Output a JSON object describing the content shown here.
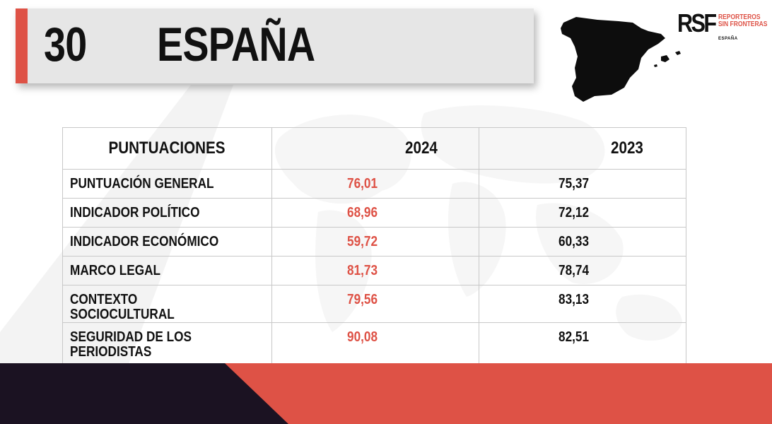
{
  "header": {
    "rank": "30",
    "country": "ESPAÑA"
  },
  "logo": {
    "mark": "RSF",
    "line1": "REPORTEROS",
    "line2": "SIN FRONTERAS",
    "line3": "ESPAÑA"
  },
  "table": {
    "headers": [
      "PUNTUACIONES",
      "2024",
      "2023"
    ],
    "rows": [
      {
        "label": "PUNTUACIÓN GENERAL",
        "y2024": "76,01",
        "y2023": "75,37"
      },
      {
        "label": "INDICADOR POLÍTICO",
        "y2024": "68,96",
        "y2023": "72,12"
      },
      {
        "label": "INDICADOR ECONÓMICO",
        "y2024": "59,72",
        "y2023": "60,33"
      },
      {
        "label": "MARCO LEGAL",
        "y2024": "81,73",
        "y2023": "78,74"
      },
      {
        "label": "CONTEXTO SOCIOCULTURAL",
        "y2024": "79,56",
        "y2023": "83,13"
      },
      {
        "label": "SEGURIDAD DE LOS PERIODISTAS",
        "y2024": "90,08",
        "y2023": "82,51"
      }
    ]
  },
  "colors": {
    "accent": "#de5246",
    "dark": "#1b1222",
    "title_bar": "#e6e6e6"
  },
  "icons": [
    "spain-map-icon",
    "world-map-background"
  ]
}
